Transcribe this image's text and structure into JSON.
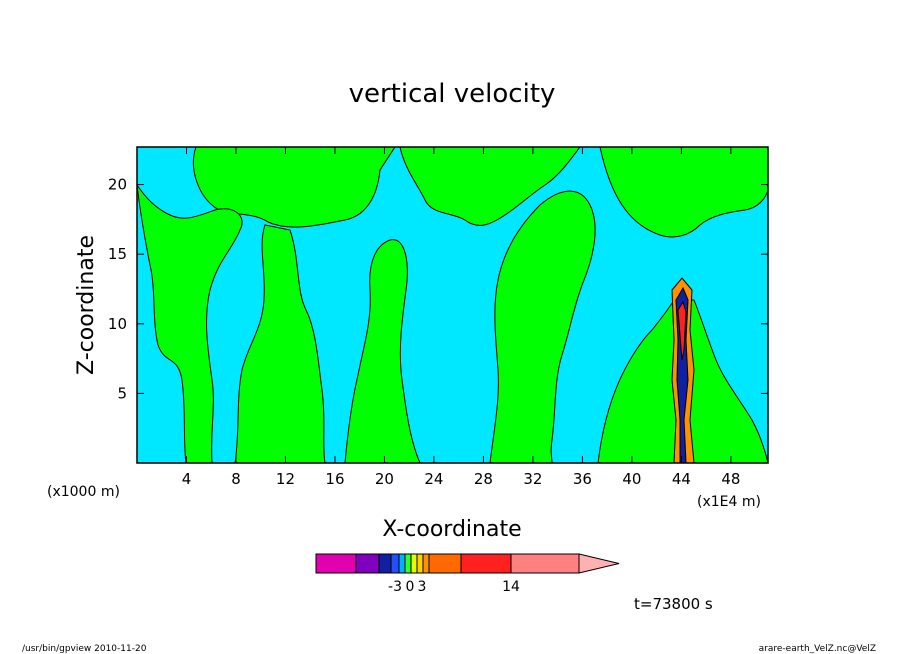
{
  "chart_data": {
    "type": "heatmap",
    "title": "vertical velocity",
    "xlabel": "X-coordinate",
    "ylabel": "Z-coordinate",
    "x_unit_left": "(x1000 m)",
    "x_unit_right": "(x1E4 m)",
    "xlim": [
      0,
      51
    ],
    "ylim": [
      0,
      22.7
    ],
    "x_ticks": [
      4,
      8,
      12,
      16,
      20,
      24,
      28,
      32,
      36,
      40,
      44,
      48
    ],
    "x_tick_labels": [
      "4",
      "8",
      "12",
      "16",
      "20",
      "24",
      "28",
      "32",
      "36",
      "40",
      "44",
      "48"
    ],
    "y_ticks": [
      5,
      10,
      15,
      20
    ],
    "y_tick_labels": [
      "5",
      "10",
      "15",
      "20"
    ],
    "background_color": "#00e8ff",
    "colorbar": {
      "colors": [
        "#e000b0",
        "#8000c0",
        "#1020a0",
        "#2050ff",
        "#00b0ff",
        "#30ff30",
        "#e0ff00",
        "#ffd000",
        "#ff9000",
        "#ff6a00",
        "#ff2020",
        "#ff8080",
        "#ffb0b0"
      ],
      "labels": [
        "-3",
        "0",
        "3",
        "14"
      ]
    },
    "time_label": "t=73800 s"
  },
  "footer": {
    "left": "/usr/bin/gpview   2010-11-20",
    "right": "arare-earth_VelZ.nc@VelZ"
  }
}
